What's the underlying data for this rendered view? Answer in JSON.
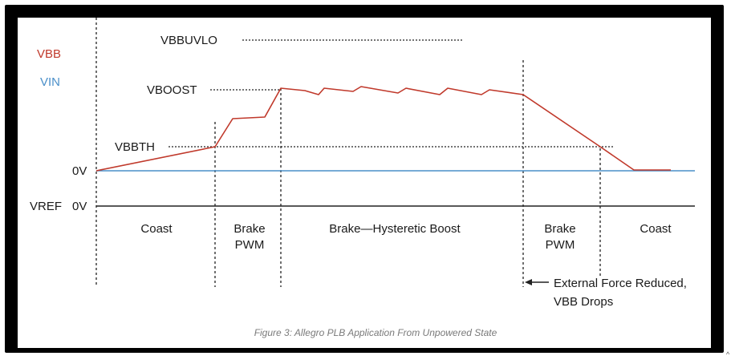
{
  "legend": {
    "vbb": {
      "label": "VBB",
      "color": "#c0392b"
    },
    "vin": {
      "label": "VIN",
      "color": "#4a8fc9"
    }
  },
  "levels": {
    "vbbuvlo": "VBBUVLO",
    "vboost": "VBOOST",
    "vbbth": "VBBTH",
    "zero_v": "0V",
    "vref": "VREF",
    "vref_zero": "0V"
  },
  "phases": [
    {
      "lines": [
        "Coast"
      ]
    },
    {
      "lines": [
        "Brake",
        "PWM"
      ]
    },
    {
      "lines": [
        "Brake—Hysteretic Boost"
      ]
    },
    {
      "lines": [
        "Brake",
        "PWM"
      ]
    },
    {
      "lines": [
        "Coast"
      ]
    }
  ],
  "annotation": {
    "line1": "External Force Reduced,",
    "line2": "VBB Drops"
  },
  "caption": "Figure 3: Allegro PLB Application From Unpowered State",
  "corner_mark": "^"
}
